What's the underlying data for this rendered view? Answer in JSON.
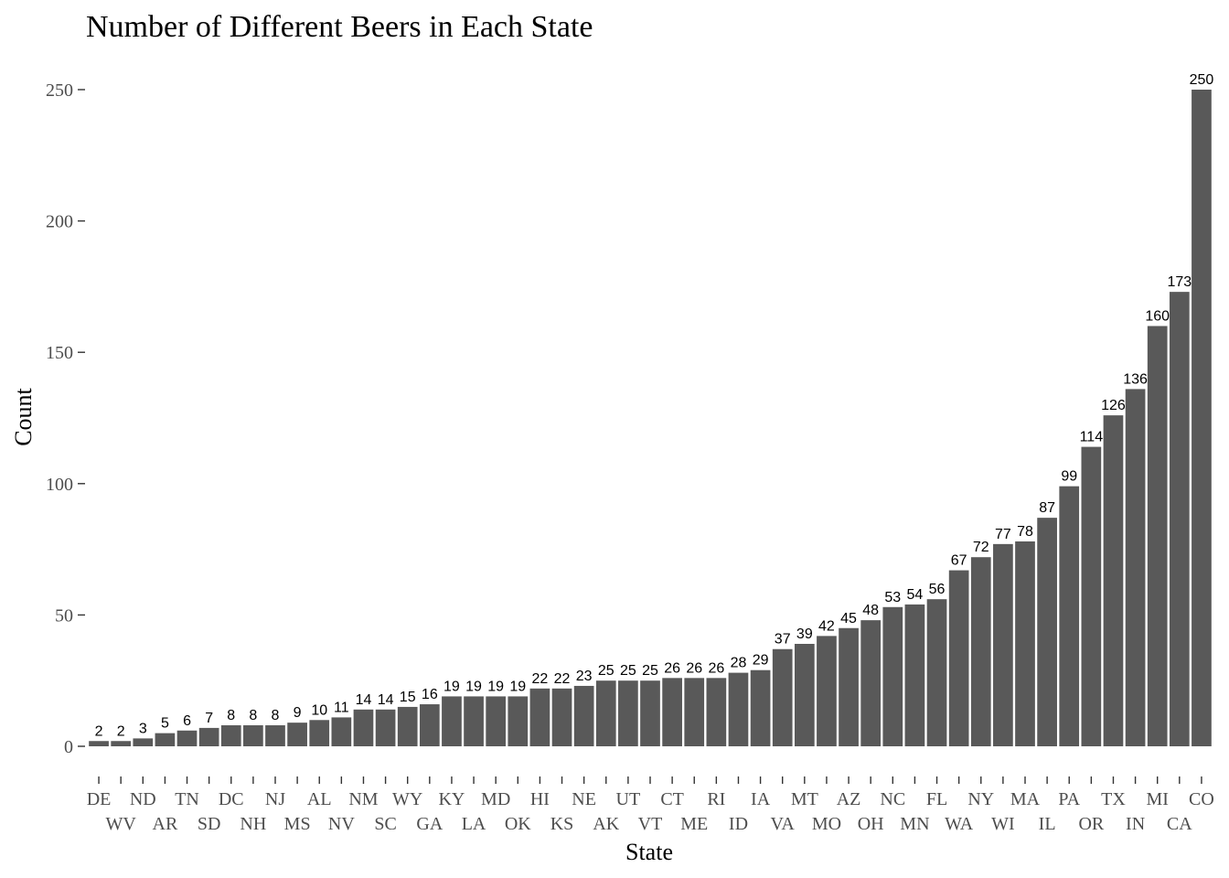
{
  "chart_data": {
    "type": "bar",
    "title": "Number of Different Beers in Each State",
    "xlabel": "State",
    "ylabel": "Count",
    "ylim": [
      0,
      250
    ],
    "yticks": [
      0,
      50,
      100,
      150,
      200,
      250
    ],
    "grid": false,
    "bar_color": "#595959",
    "categories": [
      "DE",
      "WV",
      "ND",
      "AR",
      "TN",
      "SD",
      "DC",
      "NH",
      "NJ",
      "MS",
      "AL",
      "NV",
      "NM",
      "SC",
      "WY",
      "GA",
      "KY",
      "LA",
      "MD",
      "OK",
      "HI",
      "KS",
      "NE",
      "AK",
      "UT",
      "VT",
      "CT",
      "ME",
      "RI",
      "ID",
      "IA",
      "VA",
      "MT",
      "MO",
      "AZ",
      "OH",
      "NC",
      "MN",
      "FL",
      "WA",
      "NY",
      "WI",
      "MA",
      "IL",
      "PA",
      "OR",
      "TX",
      "IN",
      "MI",
      "CA",
      "CO"
    ],
    "values": [
      2,
      2,
      3,
      5,
      6,
      7,
      8,
      8,
      8,
      9,
      10,
      11,
      14,
      14,
      15,
      16,
      19,
      19,
      19,
      19,
      22,
      22,
      23,
      25,
      25,
      25,
      26,
      26,
      26,
      28,
      29,
      37,
      39,
      42,
      45,
      48,
      53,
      54,
      56,
      67,
      72,
      77,
      78,
      87,
      99,
      114,
      126,
      136,
      160,
      173,
      250
    ]
  }
}
